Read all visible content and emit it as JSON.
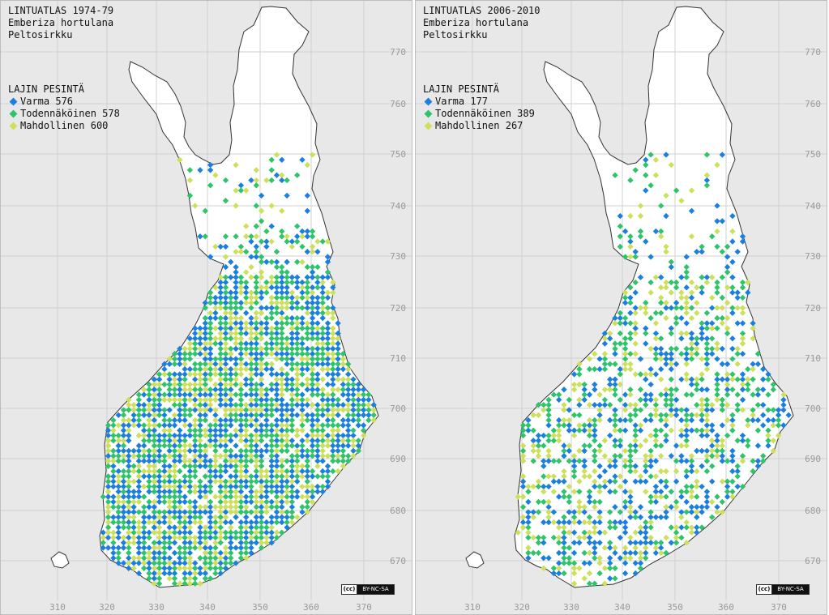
{
  "maps": [
    {
      "atlas_title": "LINTUATLAS 1974-79",
      "species_latin": "Emberiza hortulana",
      "species_finnish": "Peltosirkku",
      "legend": {
        "title": "LAJIN PESINTÄ",
        "items": [
          {
            "label": "Varma",
            "count": 576,
            "color": "#1a7fe0"
          },
          {
            "label": "Todennäköinen",
            "count": 578,
            "color": "#2ec46a"
          },
          {
            "label": "Mahdollinen",
            "count": 600,
            "color": "#cde05a"
          }
        ]
      },
      "intensity": 1.0,
      "license": "BY-NC-SA"
    },
    {
      "atlas_title": "LINTUATLAS 2006-2010",
      "species_latin": "Emberiza hortulana",
      "species_finnish": "Peltosirkku",
      "legend": {
        "title": "LAJIN PESINTÄ",
        "items": [
          {
            "label": "Varma",
            "count": 177,
            "color": "#1a7fe0"
          },
          {
            "label": "Todennäköinen",
            "count": 389,
            "color": "#2ec46a"
          },
          {
            "label": "Mahdollinen",
            "count": 267,
            "color": "#cde05a"
          }
        ]
      },
      "intensity": 0.55,
      "license": "BY-NC-SA"
    }
  ],
  "x_ticks": [
    "310",
    "320",
    "330",
    "340",
    "350",
    "360",
    "370"
  ],
  "y_ticks": [
    "770",
    "760",
    "750",
    "740",
    "730",
    "720",
    "710",
    "700",
    "690",
    "680",
    "670"
  ],
  "colors": {
    "sea": "#e8e8e8",
    "land": "#ffffff",
    "grid": "#d0d0d0",
    "tick_label": "#9a9a9a"
  }
}
